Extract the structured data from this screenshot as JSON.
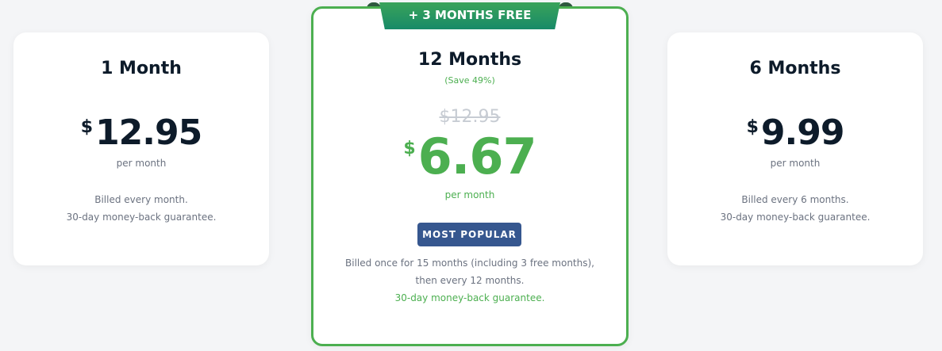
{
  "plans": [
    {
      "title": "1 Month",
      "currency": "$",
      "price": "12.95",
      "per": "per month",
      "desc_line1": "Billed every month.",
      "desc_line2": "30-day money-back guarantee."
    },
    {
      "title": "12 Months",
      "save": "(Save 49%)",
      "old_price": "$12.95",
      "currency": "$",
      "price": "6.67",
      "per": "per month",
      "badge": "MOST POPULAR",
      "ribbon": "+ 3 MONTHS FREE",
      "desc_line1": "Billed once for 15 months (including 3 free months),",
      "desc_line2": "then every 12 months.",
      "desc_line3": "30-day money-back guarantee."
    },
    {
      "title": "6 Months",
      "currency": "$",
      "price": "9.99",
      "per": "per month",
      "desc_line1": "Billed every 6 months.",
      "desc_line2": "30-day money-back guarantee."
    }
  ],
  "colors": {
    "accent": "#4caf50",
    "badge": "#36578f",
    "text": "#0d1b2a"
  }
}
